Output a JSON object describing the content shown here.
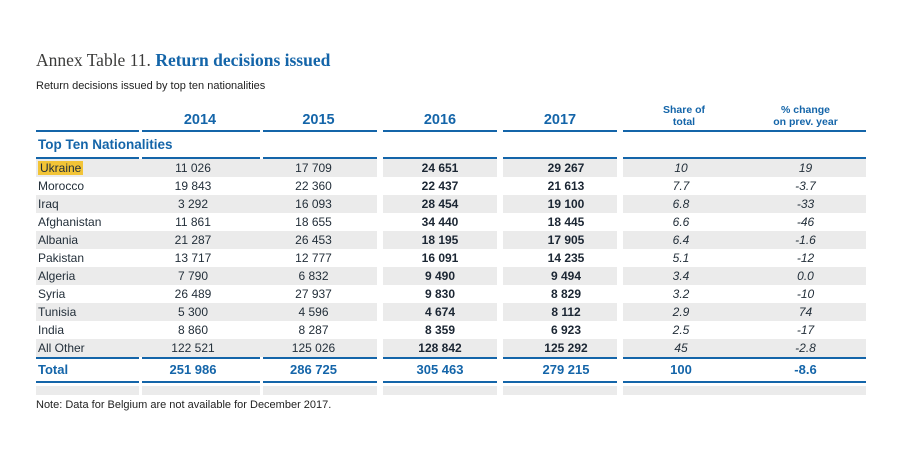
{
  "title": {
    "prefix": "Annex Table 11.",
    "main": "Return decisions issued"
  },
  "subtitle": "Return decisions issued by top ten nationalities",
  "note": "Note: Data for Belgium are not available for December 2017.",
  "colors": {
    "accent_blue": "#1465a9",
    "stripe_gray": "#ebebeb",
    "highlight_yellow": "#f2c437",
    "title_dark": "#3b3b3a",
    "body_text": "#232f3a"
  },
  "table": {
    "section_header": "Top Ten Nationalities",
    "col_headers": {
      "y2014": "2014",
      "y2015": "2015",
      "y2016": "2016",
      "y2017": "2017",
      "share_line1": "Share of",
      "share_line2": "total",
      "change_line1": "% change",
      "change_line2": "on prev. year"
    },
    "rows": [
      {
        "label": "Ukraine",
        "highlight": true,
        "y2014": "11 026",
        "y2015": "17 709",
        "y2016": "24 651",
        "y2017": "29 267",
        "share": "10",
        "change": "19"
      },
      {
        "label": "Morocco",
        "highlight": false,
        "y2014": "19 843",
        "y2015": "22 360",
        "y2016": "22 437",
        "y2017": "21 613",
        "share": "7.7",
        "change": "-3.7"
      },
      {
        "label": "Iraq",
        "highlight": false,
        "y2014": "3 292",
        "y2015": "16 093",
        "y2016": "28 454",
        "y2017": "19 100",
        "share": "6.8",
        "change": "-33"
      },
      {
        "label": "Afghanistan",
        "highlight": false,
        "y2014": "11 861",
        "y2015": "18 655",
        "y2016": "34 440",
        "y2017": "18 445",
        "share": "6.6",
        "change": "-46"
      },
      {
        "label": "Albania",
        "highlight": false,
        "y2014": "21 287",
        "y2015": "26 453",
        "y2016": "18 195",
        "y2017": "17 905",
        "share": "6.4",
        "change": "-1.6"
      },
      {
        "label": "Pakistan",
        "highlight": false,
        "y2014": "13 717",
        "y2015": "12 777",
        "y2016": "16 091",
        "y2017": "14 235",
        "share": "5.1",
        "change": "-12"
      },
      {
        "label": "Algeria",
        "highlight": false,
        "y2014": "7 790",
        "y2015": "6 832",
        "y2016": "9 490",
        "y2017": "9 494",
        "share": "3.4",
        "change": "0.0"
      },
      {
        "label": "Syria",
        "highlight": false,
        "y2014": "26 489",
        "y2015": "27 937",
        "y2016": "9 830",
        "y2017": "8 829",
        "share": "3.2",
        "change": "-10"
      },
      {
        "label": "Tunisia",
        "highlight": false,
        "y2014": "5 300",
        "y2015": "4 596",
        "y2016": "4 674",
        "y2017": "8 112",
        "share": "2.9",
        "change": "74"
      },
      {
        "label": "India",
        "highlight": false,
        "y2014": "8 860",
        "y2015": "8 287",
        "y2016": "8 359",
        "y2017": "6 923",
        "share": "2.5",
        "change": "-17"
      },
      {
        "label": "All Other",
        "highlight": false,
        "y2014": "122 521",
        "y2015": "125 026",
        "y2016": "128 842",
        "y2017": "125 292",
        "share": "45",
        "change": "-2.8"
      }
    ],
    "total": {
      "label": "Total",
      "y2014": "251 986",
      "y2015": "286 725",
      "y2016": "305 463",
      "y2017": "279 215",
      "share": "100",
      "change": "-8.6"
    }
  }
}
